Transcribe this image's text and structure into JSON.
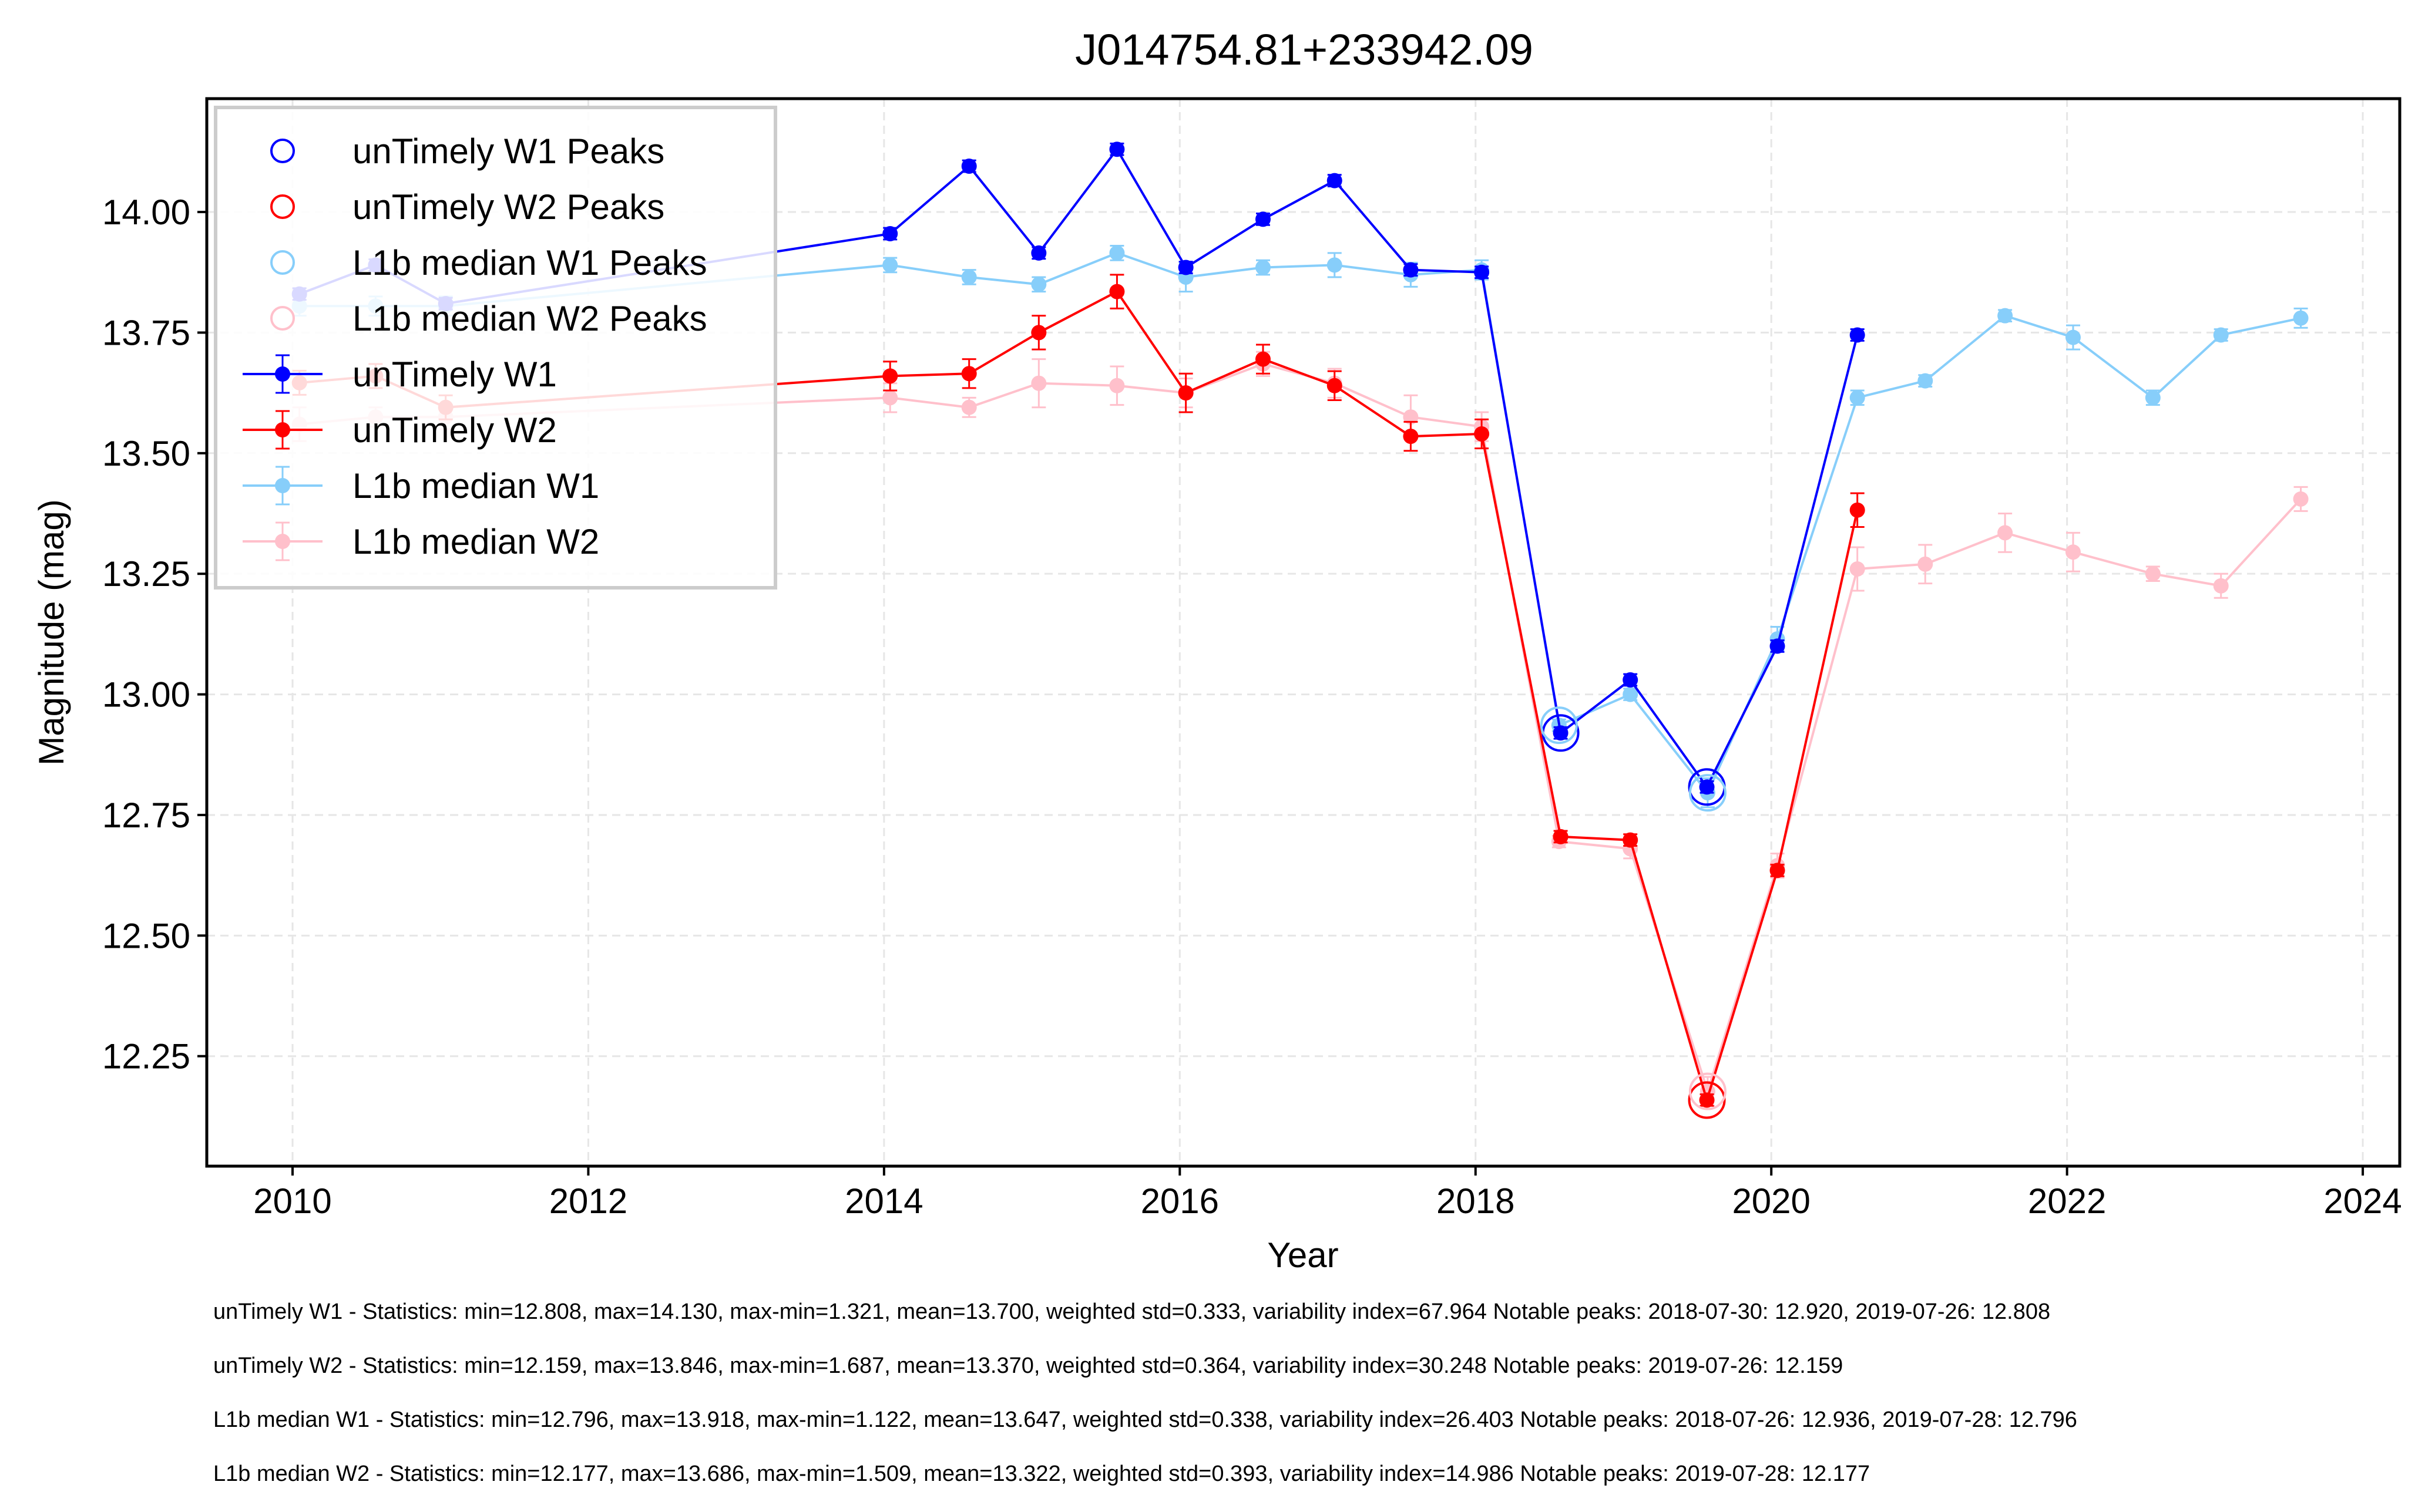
{
  "chart_data": {
    "type": "line",
    "title": "J014754.81+233942.09",
    "xlabel": "Year",
    "ylabel": "Magnitude (mag)",
    "x_ticks": [
      "2010",
      "2012",
      "2014",
      "2016",
      "2018",
      "2020",
      "2022",
      "2024"
    ],
    "x_tick_values": [
      2010,
      2012,
      2014,
      2016,
      2018,
      2020,
      2022,
      2024
    ],
    "y_ticks": [
      "12.25",
      "12.50",
      "12.75",
      "13.00",
      "13.25",
      "13.50",
      "13.75",
      "14.00"
    ],
    "y_tick_values": [
      12.25,
      12.5,
      12.75,
      13.0,
      13.25,
      13.5,
      13.75,
      14.0
    ],
    "xlim": [
      2009.42,
      2024.25
    ],
    "ylim": [
      14.235,
      12.022
    ],
    "y_inverted": true,
    "grid": true,
    "legend_position": "top-left",
    "legend": [
      "unTimely W1 Peaks",
      "unTimely W2 Peaks",
      "L1b median W1 Peaks",
      "L1b median W2 Peaks",
      "unTimely W1",
      "unTimely W2",
      "L1b median W1",
      "L1b median W2"
    ],
    "series": [
      {
        "name": "unTimely W1",
        "color": "#0000ff",
        "x": [
          "2010-01-18",
          "2010-07-25",
          "2011-01-14",
          "2014-01-16",
          "2014-07-30",
          "2015-01-18",
          "2015-07-30",
          "2016-01-16",
          "2016-07-25",
          "2017-01-18",
          "2017-07-25",
          "2018-01-16",
          "2018-07-30",
          "2019-01-18",
          "2019-07-26",
          "2020-01-16",
          "2020-08-01"
        ],
        "y": [
          13.83,
          13.89,
          13.81,
          13.955,
          14.095,
          13.915,
          14.13,
          13.885,
          13.985,
          14.065,
          13.88,
          13.875,
          12.92,
          13.03,
          12.808,
          13.1,
          13.745
        ],
        "yerr": [
          0.012,
          0.012,
          0.012,
          0.012,
          0.012,
          0.012,
          0.012,
          0.012,
          0.012,
          0.012,
          0.012,
          0.012,
          0.012,
          0.012,
          0.012,
          0.012,
          0.012
        ]
      },
      {
        "name": "unTimely W2",
        "color": "#ff0000",
        "x": [
          "2010-01-18",
          "2010-07-25",
          "2011-01-14",
          "2014-01-16",
          "2014-07-30",
          "2015-01-18",
          "2015-07-30",
          "2016-01-16",
          "2016-07-25",
          "2017-01-18",
          "2017-07-25",
          "2018-01-16",
          "2018-07-30",
          "2019-01-18",
          "2019-07-26",
          "2020-01-16",
          "2020-08-01"
        ],
        "y": [
          13.646,
          13.66,
          13.595,
          13.66,
          13.665,
          13.75,
          13.835,
          13.625,
          13.695,
          13.64,
          13.535,
          13.54,
          12.705,
          12.698,
          12.159,
          12.635,
          13.382
        ],
        "yerr": [
          0.025,
          0.025,
          0.025,
          0.03,
          0.03,
          0.035,
          0.035,
          0.04,
          0.03,
          0.03,
          0.03,
          0.03,
          0.012,
          0.012,
          0.012,
          0.012,
          0.035
        ]
      },
      {
        "name": "L1b median W1",
        "color": "#87cefa",
        "x": [
          "2010-01-18",
          "2010-07-25",
          "2011-01-14",
          "2014-01-16",
          "2014-07-30",
          "2015-01-18",
          "2015-07-30",
          "2016-01-16",
          "2016-07-25",
          "2017-01-18",
          "2017-07-25",
          "2018-01-16",
          "2018-07-26",
          "2019-01-18",
          "2019-07-28",
          "2020-01-16",
          "2020-08-01",
          "2021-01-16",
          "2021-08-01",
          "2022-01-16",
          "2022-08-01",
          "2023-01-16",
          "2023-08-01"
        ],
        "y": [
          13.805,
          13.805,
          13.805,
          13.89,
          13.865,
          13.85,
          13.915,
          13.865,
          13.885,
          13.89,
          13.87,
          13.88,
          12.936,
          13.0,
          12.796,
          13.115,
          13.615,
          13.65,
          13.785,
          13.74,
          13.615,
          13.745,
          13.78
        ],
        "yerr": [
          0.02,
          0.02,
          0.02,
          0.015,
          0.015,
          0.015,
          0.015,
          0.03,
          0.015,
          0.025,
          0.025,
          0.02,
          0.012,
          0.012,
          0.03,
          0.025,
          0.015,
          0.012,
          0.012,
          0.025,
          0.015,
          0.012,
          0.02
        ]
      },
      {
        "name": "L1b median W2",
        "color": "#ffc0cb",
        "x": [
          "2010-01-18",
          "2010-07-25",
          "2011-01-14",
          "2014-01-16",
          "2014-07-30",
          "2015-01-18",
          "2015-07-30",
          "2016-01-16",
          "2016-07-25",
          "2017-01-18",
          "2017-07-25",
          "2018-01-16",
          "2018-07-26",
          "2019-01-18",
          "2019-07-28",
          "2020-01-16",
          "2020-08-01",
          "2021-01-16",
          "2021-08-01",
          "2022-01-16",
          "2022-08-01",
          "2023-01-16",
          "2023-08-01"
        ],
        "y": [
          13.56,
          13.575,
          13.575,
          13.615,
          13.595,
          13.645,
          13.64,
          13.625,
          13.685,
          13.645,
          13.575,
          13.555,
          12.695,
          12.68,
          12.177,
          12.645,
          13.26,
          13.27,
          13.335,
          13.295,
          13.25,
          13.225,
          13.405
        ],
        "yerr": [
          0.035,
          0.02,
          0.025,
          0.03,
          0.02,
          0.05,
          0.04,
          0.03,
          0.025,
          0.03,
          0.045,
          0.03,
          0.012,
          0.02,
          0.03,
          0.025,
          0.045,
          0.04,
          0.04,
          0.04,
          0.015,
          0.025,
          0.025
        ]
      }
    ],
    "peaks": [
      {
        "series": "unTimely W1 Peaks",
        "color": "#0000ff",
        "x": [
          "2018-07-30",
          "2019-07-26"
        ],
        "y": [
          12.92,
          12.808
        ]
      },
      {
        "series": "unTimely W2 Peaks",
        "color": "#ff0000",
        "x": [
          "2019-07-26"
        ],
        "y": [
          12.159
        ]
      },
      {
        "series": "L1b median W1 Peaks",
        "color": "#87cefa",
        "x": [
          "2018-07-26",
          "2019-07-28"
        ],
        "y": [
          12.936,
          12.796
        ]
      },
      {
        "series": "L1b median W2 Peaks",
        "color": "#ffc0cb",
        "x": [
          "2019-07-28"
        ],
        "y": [
          12.177
        ]
      }
    ]
  },
  "stats": [
    "unTimely W1 - Statistics: min=12.808, max=14.130, max-min=1.321, mean=13.700, weighted std=0.333, variability index=67.964 Notable peaks: 2018-07-30: 12.920, 2019-07-26: 12.808",
    "unTimely W2 - Statistics: min=12.159, max=13.846, max-min=1.687, mean=13.370, weighted std=0.364, variability index=30.248 Notable peaks: 2019-07-26: 12.159",
    "L1b median W1 - Statistics: min=12.796, max=13.918, max-min=1.122, mean=13.647, weighted std=0.338, variability index=26.403 Notable peaks: 2018-07-26: 12.936, 2019-07-28: 12.796",
    "L1b median W2 - Statistics: min=12.177, max=13.686, max-min=1.509, mean=13.322, weighted std=0.393, variability index=14.986 Notable peaks: 2019-07-28: 12.177"
  ]
}
